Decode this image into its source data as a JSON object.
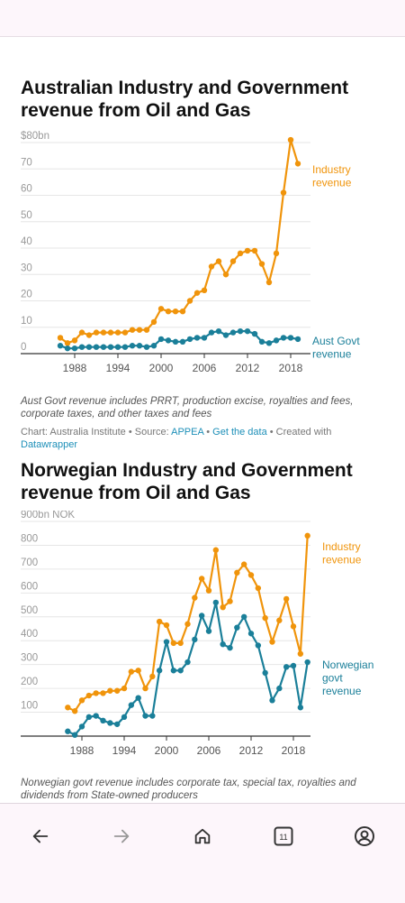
{
  "chart1": {
    "title": "Australian Industry and Government revenue from Oil and Gas",
    "note": "Aust Govt revenue includes PRRT, production excise, royalties and fees, corporate taxes, and other taxes and fees",
    "credit": {
      "prefix": "Chart: Australia Institute • Source: ",
      "source_link": "APPEA",
      "sep1": " • ",
      "data_link": "Get the data",
      "sep2": " • Created with ",
      "dw_link": "Datawrapper"
    }
  },
  "chart2": {
    "title": "Norwegian Industry and Government revenue from Oil and Gas",
    "note": "Norwegian govt revenue includes corporate tax, special tax, royalties and dividends from State-owned producers"
  },
  "nav": {
    "back": "back-arrow-icon",
    "forward": "forward-arrow-icon",
    "home": "home-icon",
    "tabs": "tabs-icon",
    "tabs_count": "11",
    "account": "account-icon"
  },
  "colors": {
    "industry": "#f0940b",
    "govt": "#1a7f99",
    "axis": "#333333",
    "grid": "#e6e6e6",
    "tick": "#999999"
  },
  "chart_data": [
    {
      "type": "line",
      "x": [
        1986,
        1987,
        1988,
        1989,
        1990,
        1991,
        1992,
        1993,
        1994,
        1995,
        1996,
        1997,
        1998,
        1999,
        2000,
        2001,
        2002,
        2003,
        2004,
        2005,
        2006,
        2007,
        2008,
        2009,
        2010,
        2011,
        2012,
        2013,
        2014,
        2015,
        2016,
        2017,
        2018,
        2019,
        2020
      ],
      "series": [
        {
          "name": "Industry revenue",
          "values": [
            6,
            4,
            5,
            8,
            7,
            8,
            8,
            8,
            8,
            8,
            9,
            9,
            9,
            12,
            17,
            16,
            16,
            16,
            20,
            23,
            24,
            33,
            35,
            30,
            35,
            38,
            39,
            39,
            34,
            27,
            38,
            61,
            81,
            72,
            null
          ]
        },
        {
          "name": "Aust Govt revenue",
          "values": [
            3,
            2,
            2,
            2.5,
            2.5,
            2.5,
            2.5,
            2.5,
            2.5,
            2.5,
            3,
            3,
            2.5,
            3,
            5.5,
            5,
            4.5,
            4.5,
            5.5,
            6,
            6,
            8,
            8.5,
            7,
            8,
            8.5,
            8.5,
            7.5,
            4.5,
            4,
            5,
            6,
            6,
            5.5,
            null
          ]
        }
      ],
      "xticks": [
        "1988",
        "1994",
        "2000",
        "2006",
        "2012",
        "2018"
      ],
      "ytick_labels": [
        "$80bn",
        "70",
        "60",
        "50",
        "40",
        "30",
        "20",
        "10",
        "0"
      ],
      "yticks": [
        80,
        70,
        60,
        50,
        40,
        30,
        20,
        10,
        0
      ],
      "ylim": [
        0,
        80
      ],
      "series_labels": {
        "industry": [
          "Industry",
          "revenue"
        ],
        "govt": [
          "Aust Govt",
          "revenue"
        ]
      }
    },
    {
      "type": "line",
      "x": [
        1986,
        1987,
        1988,
        1989,
        1990,
        1991,
        1992,
        1993,
        1994,
        1995,
        1996,
        1997,
        1998,
        1999,
        2000,
        2001,
        2002,
        2003,
        2004,
        2005,
        2006,
        2007,
        2008,
        2009,
        2010,
        2011,
        2012,
        2013,
        2014,
        2015,
        2016,
        2017,
        2018,
        2019,
        2020,
        2021
      ],
      "series": [
        {
          "name": "Industry revenue",
          "values": [
            120,
            105,
            150,
            170,
            180,
            180,
            190,
            190,
            200,
            270,
            275,
            200,
            250,
            480,
            465,
            390,
            390,
            470,
            580,
            660,
            610,
            780,
            540,
            565,
            685,
            720,
            675,
            620,
            495,
            395,
            485,
            575,
            460,
            345,
            840,
            null
          ]
        },
        {
          "name": "Norwegian govt revenue",
          "values": [
            20,
            5,
            40,
            80,
            85,
            65,
            55,
            50,
            80,
            130,
            160,
            85,
            85,
            275,
            395,
            275,
            275,
            310,
            405,
            505,
            440,
            560,
            385,
            370,
            455,
            500,
            430,
            380,
            265,
            150,
            200,
            290,
            295,
            120,
            310,
            null
          ]
        }
      ],
      "xticks": [
        "1988",
        "1994",
        "2000",
        "2006",
        "2012",
        "2018"
      ],
      "ytick_labels": [
        "900bn NOK",
        "800",
        "700",
        "600",
        "500",
        "400",
        "300",
        "200",
        "100"
      ],
      "yticks": [
        900,
        800,
        700,
        600,
        500,
        400,
        300,
        200,
        100
      ],
      "ylim": [
        0,
        900
      ],
      "series_labels": {
        "industry": [
          "Industry",
          "revenue"
        ],
        "govt": [
          "Norwegian",
          "govt",
          "revenue"
        ]
      }
    }
  ]
}
